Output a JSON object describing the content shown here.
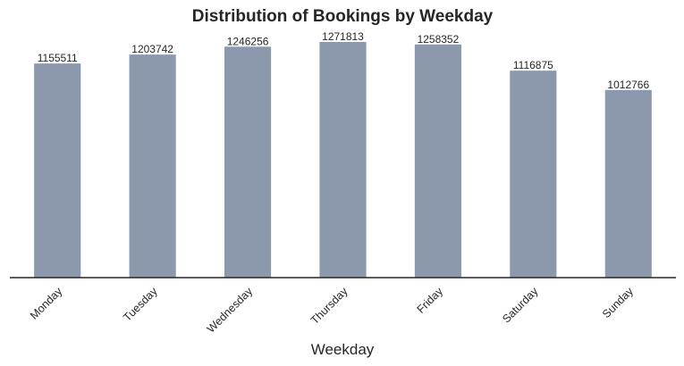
{
  "chart_data": {
    "type": "bar",
    "title": "Distribution of Bookings by Weekday",
    "xlabel": "Weekday",
    "ylabel": "",
    "categories": [
      "Monday",
      "Tuesday",
      "Wednesday",
      "Thursday",
      "Friday",
      "Saturday",
      "Sunday"
    ],
    "values": [
      1155511,
      1203742,
      1246256,
      1271813,
      1258352,
      1116875,
      1012766
    ],
    "data_labels": [
      "1155511",
      "1203742",
      "1246256",
      "1271813",
      "1258352",
      "1116875",
      "1012766"
    ],
    "ylim": [
      0,
      1271813
    ],
    "grid": false,
    "bar_color": "#8c99ad",
    "axis_color": "#262626",
    "text_color": "#262626"
  }
}
